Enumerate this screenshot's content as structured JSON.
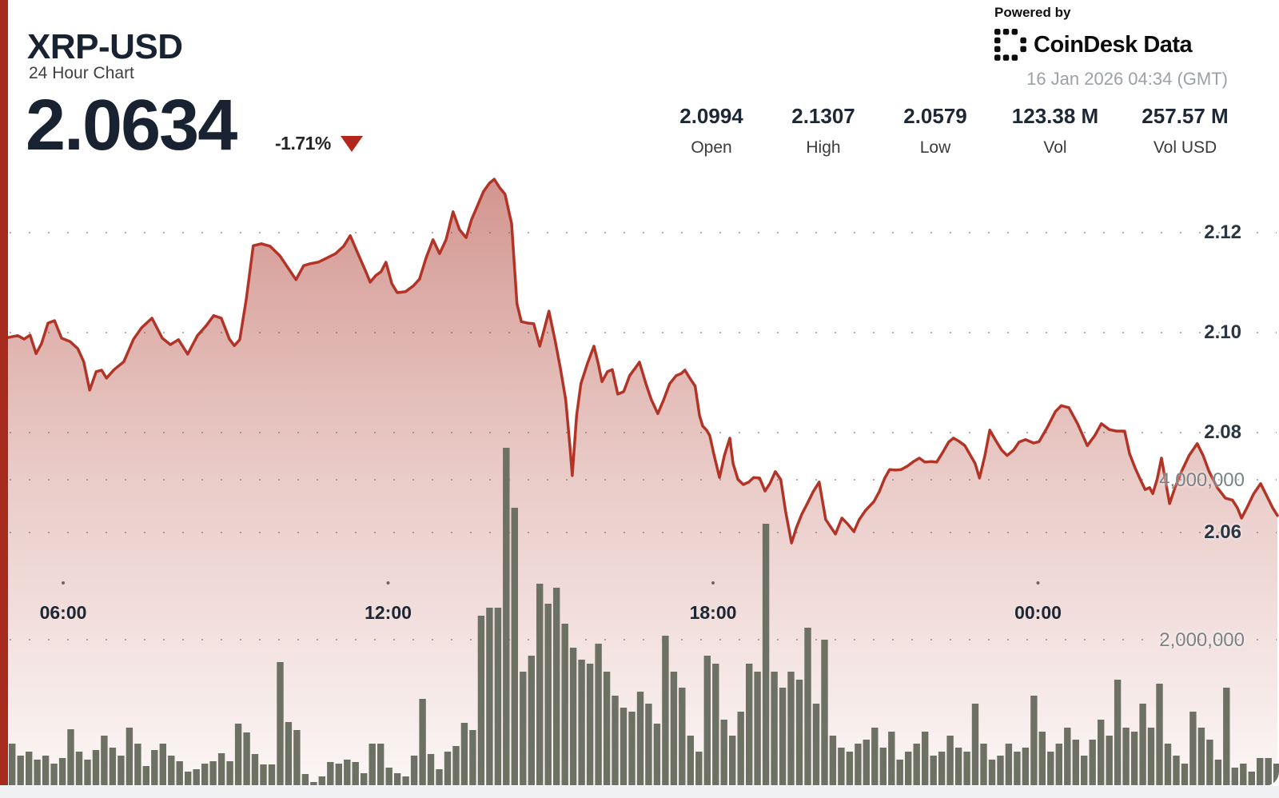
{
  "header": {
    "symbol": "XRP-USD",
    "subtitle": "24 Hour Chart",
    "price": "2.0634",
    "change": "-1.71%",
    "change_direction": "down"
  },
  "stats": [
    {
      "value": "2.0994",
      "label": "Open"
    },
    {
      "value": "2.1307",
      "label": "High"
    },
    {
      "value": "2.0579",
      "label": "Low"
    },
    {
      "value": "123.38 M",
      "label": "Vol"
    },
    {
      "value": "257.57 M",
      "label": "Vol USD"
    }
  ],
  "attribution": {
    "powered_by": "Powered by",
    "brand": "CoinDesk Data",
    "timestamp": "16 Jan 2026 04:34 (GMT)"
  },
  "colors": {
    "accent_red": "#b3261b",
    "line_red": "#b23427",
    "left_bar_red": "#a62b1c",
    "volume_bar": "#6d7164",
    "navy_text": "#182230",
    "gray_label": "#7b8285",
    "strip": "#eef0f1"
  },
  "chart_data": {
    "type": "line",
    "title": "XRP-USD 24 Hour Chart",
    "grid": "dotted",
    "legend": "none",
    "x_axis": {
      "labels": [
        "06:00",
        "12:00",
        "18:00",
        "00:00"
      ],
      "label_hours": [
        6,
        12,
        18,
        24
      ],
      "range_hours": [
        4.98,
        28.42
      ],
      "note": "hours from previous midnight GMT; >24 = next day"
    },
    "y_axis_price": {
      "ticks": [
        2.12,
        2.1,
        2.08,
        2.06
      ],
      "range": [
        2.054,
        2.135
      ],
      "side": "right"
    },
    "y_axis_volume": {
      "ticks": [
        4000000,
        2000000
      ],
      "tick_labels": [
        "4,000,000",
        "2,000,000"
      ],
      "side": "right"
    },
    "price_series": {
      "name": "price_usd",
      "color": "#b23427",
      "points": [
        [
          4.98,
          2.099
        ],
        [
          5.16,
          2.0994
        ],
        [
          5.28,
          2.0987
        ],
        [
          5.39,
          2.0995
        ],
        [
          5.5,
          2.0958
        ],
        [
          5.6,
          2.0978
        ],
        [
          5.72,
          2.1019
        ],
        [
          5.84,
          2.1024
        ],
        [
          5.97,
          2.0989
        ],
        [
          6.13,
          2.0982
        ],
        [
          6.27,
          2.0968
        ],
        [
          6.38,
          2.0942
        ],
        [
          6.49,
          2.0885
        ],
        [
          6.61,
          2.0922
        ],
        [
          6.71,
          2.0925
        ],
        [
          6.8,
          2.0909
        ],
        [
          6.94,
          2.0926
        ],
        [
          7.12,
          2.0942
        ],
        [
          7.3,
          2.0987
        ],
        [
          7.45,
          2.101
        ],
        [
          7.64,
          2.1029
        ],
        [
          7.83,
          2.0989
        ],
        [
          7.98,
          2.0976
        ],
        [
          8.13,
          2.0986
        ],
        [
          8.3,
          2.0957
        ],
        [
          8.48,
          2.0994
        ],
        [
          8.64,
          2.1014
        ],
        [
          8.78,
          2.1034
        ],
        [
          8.92,
          2.1029
        ],
        [
          9.07,
          2.0987
        ],
        [
          9.16,
          2.0974
        ],
        [
          9.26,
          2.0986
        ],
        [
          9.38,
          2.1066
        ],
        [
          9.51,
          2.1174
        ],
        [
          9.66,
          2.1178
        ],
        [
          9.82,
          2.1173
        ],
        [
          10.0,
          2.1154
        ],
        [
          10.18,
          2.1125
        ],
        [
          10.3,
          2.1106
        ],
        [
          10.44,
          2.1134
        ],
        [
          10.56,
          2.1138
        ],
        [
          10.71,
          2.1141
        ],
        [
          10.86,
          2.1149
        ],
        [
          11.03,
          2.1158
        ],
        [
          11.18,
          2.1173
        ],
        [
          11.3,
          2.1194
        ],
        [
          11.48,
          2.1149
        ],
        [
          11.59,
          2.1122
        ],
        [
          11.67,
          2.1101
        ],
        [
          11.77,
          2.1114
        ],
        [
          11.87,
          2.1122
        ],
        [
          11.96,
          2.1141
        ],
        [
          12.07,
          2.1098
        ],
        [
          12.17,
          2.108
        ],
        [
          12.32,
          2.1082
        ],
        [
          12.47,
          2.1094
        ],
        [
          12.58,
          2.1107
        ],
        [
          12.7,
          2.1149
        ],
        [
          12.83,
          2.1186
        ],
        [
          12.95,
          2.1158
        ],
        [
          13.07,
          2.1186
        ],
        [
          13.2,
          2.1242
        ],
        [
          13.32,
          2.1206
        ],
        [
          13.44,
          2.119
        ],
        [
          13.54,
          2.1226
        ],
        [
          13.65,
          2.1254
        ],
        [
          13.76,
          2.1282
        ],
        [
          13.87,
          2.1299
        ],
        [
          13.96,
          2.1307
        ],
        [
          14.06,
          2.129
        ],
        [
          14.16,
          2.1277
        ],
        [
          14.28,
          2.1218
        ],
        [
          14.38,
          2.1058
        ],
        [
          14.46,
          2.1022
        ],
        [
          14.58,
          2.1019
        ],
        [
          14.69,
          2.1018
        ],
        [
          14.8,
          2.0973
        ],
        [
          14.89,
          2.101
        ],
        [
          14.97,
          2.1043
        ],
        [
          15.08,
          2.0986
        ],
        [
          15.18,
          2.093
        ],
        [
          15.28,
          2.0866
        ],
        [
          15.36,
          2.077
        ],
        [
          15.4,
          2.0714
        ],
        [
          15.48,
          2.0834
        ],
        [
          15.56,
          2.0898
        ],
        [
          15.68,
          2.0938
        ],
        [
          15.8,
          2.0973
        ],
        [
          15.88,
          2.0938
        ],
        [
          15.95,
          2.0902
        ],
        [
          16.05,
          2.0922
        ],
        [
          16.14,
          2.0926
        ],
        [
          16.24,
          2.0877
        ],
        [
          16.35,
          2.0882
        ],
        [
          16.46,
          2.0914
        ],
        [
          16.57,
          2.093
        ],
        [
          16.64,
          2.0941
        ],
        [
          16.76,
          2.0898
        ],
        [
          16.86,
          2.0866
        ],
        [
          16.98,
          2.0838
        ],
        [
          17.09,
          2.0866
        ],
        [
          17.2,
          2.0898
        ],
        [
          17.32,
          2.0914
        ],
        [
          17.41,
          2.0918
        ],
        [
          17.48,
          2.0925
        ],
        [
          17.59,
          2.0906
        ],
        [
          17.67,
          2.0893
        ],
        [
          17.75,
          2.0834
        ],
        [
          17.81,
          2.0813
        ],
        [
          17.88,
          2.0805
        ],
        [
          17.94,
          2.0794
        ],
        [
          18.02,
          2.0754
        ],
        [
          18.12,
          2.071
        ],
        [
          18.21,
          2.0754
        ],
        [
          18.31,
          2.0789
        ],
        [
          18.37,
          2.0738
        ],
        [
          18.46,
          2.0706
        ],
        [
          18.56,
          2.0696
        ],
        [
          18.66,
          2.0701
        ],
        [
          18.75,
          2.071
        ],
        [
          18.86,
          2.0709
        ],
        [
          18.96,
          2.0683
        ],
        [
          19.05,
          2.0698
        ],
        [
          19.15,
          2.0722
        ],
        [
          19.25,
          2.0706
        ],
        [
          19.34,
          2.0642
        ],
        [
          19.45,
          2.0579
        ],
        [
          19.54,
          2.061
        ],
        [
          19.64,
          2.0637
        ],
        [
          19.74,
          2.0658
        ],
        [
          19.85,
          2.0682
        ],
        [
          19.96,
          2.0701
        ],
        [
          20.08,
          2.0626
        ],
        [
          20.18,
          2.061
        ],
        [
          20.26,
          2.0597
        ],
        [
          20.38,
          2.0629
        ],
        [
          20.48,
          2.0618
        ],
        [
          20.6,
          2.0602
        ],
        [
          20.7,
          2.0626
        ],
        [
          20.82,
          2.0645
        ],
        [
          20.97,
          2.0662
        ],
        [
          21.07,
          2.0682
        ],
        [
          21.17,
          2.0709
        ],
        [
          21.26,
          2.0726
        ],
        [
          21.37,
          2.0725
        ],
        [
          21.47,
          2.0726
        ],
        [
          21.59,
          2.0733
        ],
        [
          21.7,
          2.0742
        ],
        [
          21.81,
          2.0749
        ],
        [
          21.91,
          2.0741
        ],
        [
          22.03,
          2.0742
        ],
        [
          22.13,
          2.0741
        ],
        [
          22.25,
          2.0762
        ],
        [
          22.35,
          2.0781
        ],
        [
          22.44,
          2.0789
        ],
        [
          22.55,
          2.0782
        ],
        [
          22.65,
          2.0774
        ],
        [
          22.74,
          2.0757
        ],
        [
          22.84,
          2.0738
        ],
        [
          22.92,
          2.0709
        ],
        [
          23.02,
          2.0754
        ],
        [
          23.11,
          2.0805
        ],
        [
          23.21,
          2.0786
        ],
        [
          23.33,
          2.0765
        ],
        [
          23.43,
          2.0754
        ],
        [
          23.55,
          2.0765
        ],
        [
          23.65,
          2.0781
        ],
        [
          23.77,
          2.0786
        ],
        [
          23.92,
          2.0779
        ],
        [
          24.02,
          2.0782
        ],
        [
          24.17,
          2.081
        ],
        [
          24.32,
          2.0842
        ],
        [
          24.43,
          2.0854
        ],
        [
          24.57,
          2.085
        ],
        [
          24.73,
          2.0818
        ],
        [
          24.91,
          2.0774
        ],
        [
          25.05,
          2.0794
        ],
        [
          25.17,
          2.0818
        ],
        [
          25.32,
          2.0806
        ],
        [
          25.45,
          2.0803
        ],
        [
          25.6,
          2.0803
        ],
        [
          25.69,
          2.0758
        ],
        [
          25.79,
          2.073
        ],
        [
          25.89,
          2.0706
        ],
        [
          25.98,
          2.0686
        ],
        [
          26.06,
          2.069
        ],
        [
          26.12,
          2.0678
        ],
        [
          26.2,
          2.0706
        ],
        [
          26.28,
          2.0749
        ],
        [
          26.35,
          2.0706
        ],
        [
          26.43,
          2.0658
        ],
        [
          26.53,
          2.069
        ],
        [
          26.65,
          2.0722
        ],
        [
          26.79,
          2.0754
        ],
        [
          26.94,
          2.0778
        ],
        [
          27.05,
          2.0754
        ],
        [
          27.16,
          2.0722
        ],
        [
          27.31,
          2.069
        ],
        [
          27.46,
          2.0669
        ],
        [
          27.59,
          2.0665
        ],
        [
          27.68,
          2.065
        ],
        [
          27.76,
          2.0629
        ],
        [
          27.86,
          2.065
        ],
        [
          27.98,
          2.0677
        ],
        [
          28.11,
          2.0698
        ],
        [
          28.23,
          2.0672
        ],
        [
          28.33,
          2.065
        ],
        [
          28.42,
          2.0634
        ]
      ]
    },
    "volume_series": {
      "name": "volume",
      "unit": "XRP",
      "color": "#6d7164",
      "interval_minutes": 10,
      "start_hour": 5.0,
      "values_millions": [
        0.7,
        0.55,
        0.6,
        0.5,
        0.55,
        0.45,
        0.52,
        0.88,
        0.6,
        0.5,
        0.62,
        0.8,
        0.65,
        0.55,
        0.9,
        0.7,
        0.42,
        0.62,
        0.7,
        0.55,
        0.48,
        0.35,
        0.38,
        0.45,
        0.48,
        0.58,
        0.48,
        0.95,
        0.84,
        0.57,
        0.44,
        0.44,
        1.72,
        0.97,
        0.87,
        0.32,
        0.1,
        0.29,
        0.47,
        0.45,
        0.5,
        0.47,
        0.33,
        0.7,
        0.7,
        0.4,
        0.33,
        0.29,
        0.55,
        1.26,
        0.57,
        0.38,
        0.6,
        0.67,
        0.96,
        0.87,
        2.3,
        2.4,
        2.4,
        4.4,
        3.65,
        1.6,
        1.8,
        2.7,
        2.45,
        2.65,
        2.2,
        1.9,
        1.75,
        1.7,
        1.95,
        1.6,
        1.3,
        1.15,
        1.1,
        1.35,
        1.2,
        0.95,
        2.05,
        1.6,
        1.4,
        0.8,
        0.6,
        1.8,
        1.7,
        1.0,
        0.8,
        1.1,
        1.7,
        1.6,
        3.45,
        1.6,
        1.4,
        1.6,
        1.5,
        2.15,
        1.2,
        2.0,
        0.8,
        0.65,
        0.6,
        0.7,
        0.75,
        0.9,
        0.65,
        0.85,
        0.5,
        0.6,
        0.7,
        0.85,
        0.55,
        0.6,
        0.8,
        0.65,
        0.6,
        1.2,
        0.7,
        0.5,
        0.55,
        0.7,
        0.6,
        0.65,
        1.3,
        0.85,
        0.6,
        0.7,
        0.9,
        0.75,
        0.55,
        0.75,
        1.0,
        0.8,
        1.5,
        0.9,
        0.85,
        1.2,
        0.9,
        1.45,
        0.7,
        0.55,
        0.45,
        1.1,
        0.9,
        0.75,
        0.5,
        1.4,
        0.4,
        0.45,
        0.35,
        0.52,
        0.52,
        0.45
      ]
    }
  }
}
